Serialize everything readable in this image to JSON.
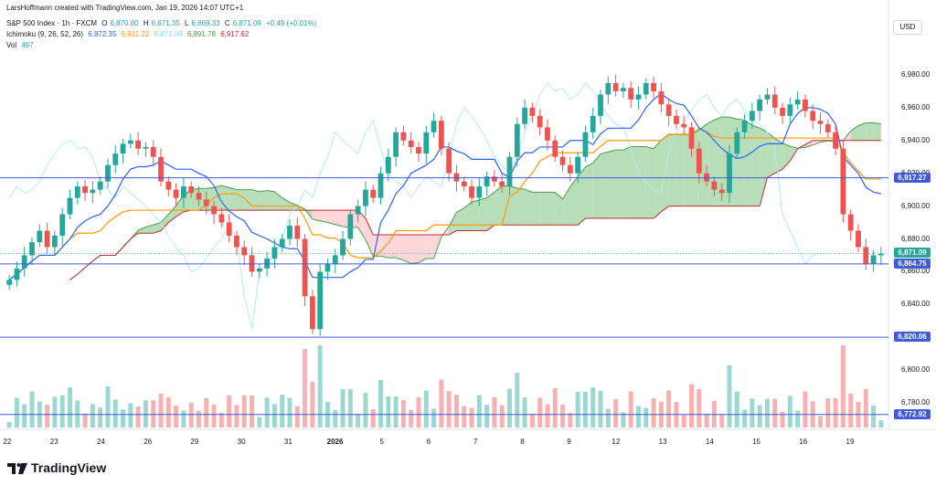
{
  "header": {
    "attribution": "LarsHoffmann created with TradingView.com, Jan 19, 2026 14:07 UTC+1",
    "symbol": "S&P 500 Index · 1h · FXCM",
    "open_label": "O",
    "open": "6,870.60",
    "high_label": "H",
    "high": "6,871.35",
    "low_label": "L",
    "low": "6,869.33",
    "close_label": "C",
    "close": "6,871.09",
    "change": "+0.49 (+0.01%)",
    "ichimoku_label": "Ichimoku (9, 26, 52, 26)",
    "ichimoku_values": [
      "6,872.35",
      "6,911.22",
      "6,871.09",
      "6,891.78",
      "6,917.62"
    ],
    "vol_label": "Vol",
    "vol_value": "497"
  },
  "currency": "USD",
  "colors": {
    "up": "#26a69a",
    "down": "#ef5350",
    "tenkan": "#2962ff",
    "kijun": "#ff9800",
    "chikou": "#b2ebf2",
    "span_a": "#43a047",
    "span_b": "#c62828",
    "hline": "#3f5bd7",
    "cloud_up": "#a5d6a7",
    "cloud_down": "#ffcdd2"
  },
  "chart_data": {
    "type": "candlestick",
    "title": "S&P 500 Index · 1h · FXCM",
    "ylim": [
      6765,
      6995
    ],
    "y_ticks": [
      6780,
      6800,
      6820,
      6840,
      6860,
      6880,
      6900,
      6920,
      6940,
      6960,
      6980
    ],
    "y_tick_labels": [
      "6,780.00",
      "6,800.00",
      "6,820.00",
      "6,840.00",
      "6,860.00",
      "6,880.00",
      "6,900.00",
      "6,920.00",
      "6,940.00",
      "6,960.00",
      "6,980.00"
    ],
    "x_ticks": [
      "22",
      "23",
      "24",
      "26",
      "29",
      "30",
      "31",
      "2026",
      "5",
      "6",
      "7",
      "8",
      "9",
      "12",
      "13",
      "14",
      "15",
      "16",
      "19"
    ],
    "close_series": [
      6855,
      6862,
      6870,
      6878,
      6885,
      6875,
      6882,
      6895,
      6905,
      6912,
      6908,
      6910,
      6915,
      6925,
      6932,
      6938,
      6940,
      6935,
      6936,
      6930,
      6915,
      6910,
      6905,
      6912,
      6908,
      6904,
      6900,
      6895,
      6890,
      6882,
      6875,
      6870,
      6860,
      6862,
      6868,
      6875,
      6880,
      6888,
      6880,
      6845,
      6825,
      6860,
      6865,
      6870,
      6880,
      6895,
      6900,
      6910,
      6905,
      6920,
      6930,
      6945,
      6940,
      6936,
      6932,
      6945,
      6952,
      6935,
      6920,
      6915,
      6912,
      6905,
      6912,
      6918,
      6915,
      6912,
      6930,
      6950,
      6960,
      6955,
      6948,
      6940,
      6930,
      6925,
      6920,
      6930,
      6945,
      6955,
      6968,
      6975,
      6970,
      6972,
      6965,
      6968,
      6975,
      6970,
      6962,
      6955,
      6950,
      6948,
      6935,
      6920,
      6915,
      6910,
      6908,
      6932,
      6945,
      6952,
      6958,
      6965,
      6968,
      6960,
      6955,
      6962,
      6965,
      6958,
      6952,
      6950,
      6945,
      6935,
      6895,
      6885,
      6875,
      6865,
      6870,
      6871
    ],
    "horizontal_levels": [
      {
        "value": 6917.27,
        "label": "6,917.27"
      },
      {
        "value": 6864.75,
        "label": "6,864.75"
      },
      {
        "value": 6820.06,
        "label": "6,820.06"
      },
      {
        "value": 6772.92,
        "label": "6,772.92"
      }
    ],
    "last_price": {
      "value": 6871.09,
      "label": "6,871.09"
    },
    "indicators": [
      "Ichimoku (9, 26, 52, 26)",
      "Vol"
    ],
    "grid": false
  },
  "brand": "TradingView"
}
